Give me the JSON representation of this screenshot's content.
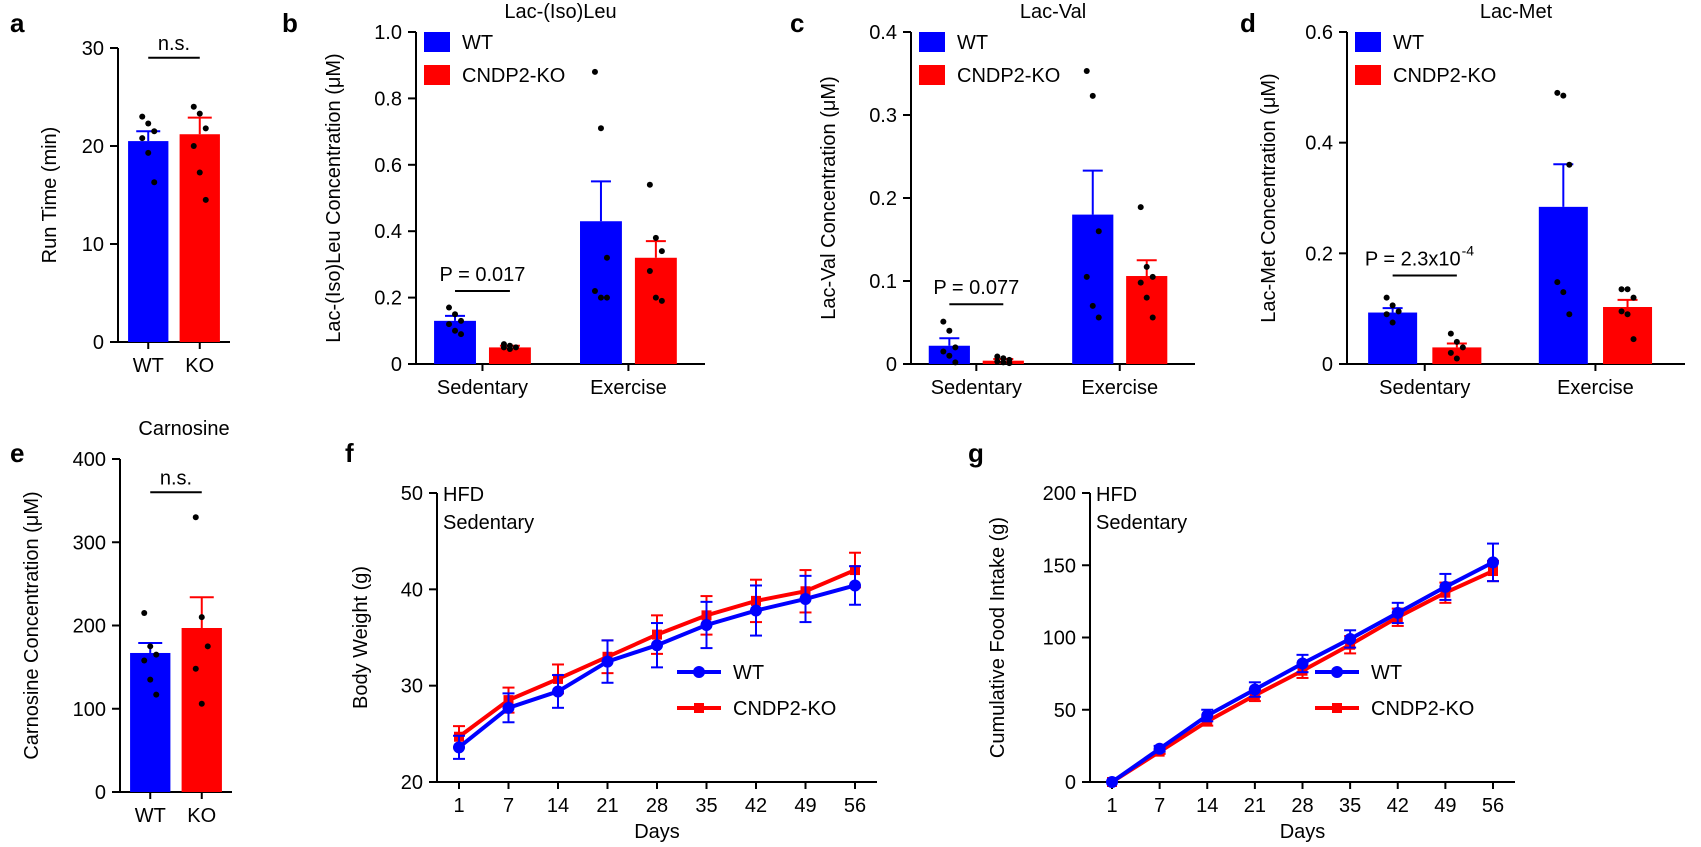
{
  "colors": {
    "wt": "#0000ff",
    "ko": "#ff0000",
    "axis": "#000000",
    "dot": "#000000"
  },
  "chart_data": [
    {
      "id": "a",
      "panel_label": "a",
      "type": "bar",
      "title": "",
      "ylabel": "Run  Time  (min)",
      "xlabel": "",
      "ylim": [
        0,
        30
      ],
      "yticks": [
        0,
        10,
        20,
        30
      ],
      "categories": [
        "WT",
        "KO"
      ],
      "values": [
        20.5,
        21.2
      ],
      "errors": [
        1.0,
        1.7
      ],
      "points": [
        [
          23.0,
          22.3,
          21.5,
          20.8,
          19.3,
          16.3
        ],
        [
          24.0,
          23.3,
          21.8,
          20.0,
          17.3,
          14.5
        ]
      ],
      "annotations": [
        {
          "text": "n.s.",
          "between": [
            0,
            1
          ],
          "y": 29
        }
      ]
    },
    {
      "id": "b",
      "panel_label": "b",
      "type": "grouped-bar",
      "title": "Lac-(Iso)Leu",
      "ylabel": "Lac-(Iso)Leu Concentration (μM)",
      "xlabel": "",
      "ylim": [
        0,
        1.0
      ],
      "yticks": [
        0,
        0.2,
        0.4,
        0.6,
        0.8,
        1.0
      ],
      "ytick_labels": [
        "0",
        "0.2",
        "0.4",
        "0.6",
        "0.8",
        "1.0"
      ],
      "categories": [
        "Sedentary",
        "Exercise"
      ],
      "series": [
        {
          "name": "WT",
          "values": [
            0.13,
            0.43
          ],
          "errors": [
            0.015,
            0.12
          ],
          "points": [
            [
              0.17,
              0.15,
              0.13,
              0.12,
              0.1,
              0.09
            ],
            [
              0.88,
              0.71,
              0.32,
              0.22,
              0.2,
              0.2
            ]
          ]
        },
        {
          "name": "CNDP2-KO",
          "values": [
            0.05,
            0.32
          ],
          "errors": [
            0.005,
            0.05
          ],
          "points": [
            [
              0.06,
              0.055,
              0.05,
              0.05,
              0.045
            ],
            [
              0.54,
              0.38,
              0.34,
              0.28,
              0.2,
              0.19
            ]
          ]
        }
      ],
      "legend": [
        "WT",
        "CNDP2-KO"
      ],
      "annotations": [
        {
          "text": "P = 0.017",
          "between_group": 0,
          "y": 0.22
        }
      ]
    },
    {
      "id": "c",
      "panel_label": "c",
      "type": "grouped-bar",
      "title": "Lac-Val",
      "ylabel": "Lac-Val Concentration (μM)",
      "xlabel": "",
      "ylim": [
        0,
        0.4
      ],
      "yticks": [
        0,
        0.1,
        0.2,
        0.3,
        0.4
      ],
      "ytick_labels": [
        "0",
        "0.1",
        "0.2",
        "0.3",
        "0.4"
      ],
      "categories": [
        "Sedentary",
        "Exercise"
      ],
      "series": [
        {
          "name": "WT",
          "values": [
            0.022,
            0.18
          ],
          "errors": [
            0.009,
            0.053
          ],
          "points": [
            [
              0.051,
              0.04,
              0.02,
              0.015,
              0.01,
              0.002
            ],
            [
              0.353,
              0.323,
              0.16,
              0.105,
              0.07,
              0.056
            ]
          ]
        },
        {
          "name": "CNDP2-KO",
          "values": [
            0.004,
            0.106
          ],
          "errors": [
            0.002,
            0.019
          ],
          "points": [
            [
              0.009,
              0.007,
              0.005,
              0.003,
              0.002,
              0.001
            ],
            [
              0.189,
              0.117,
              0.105,
              0.098,
              0.08,
              0.056
            ]
          ]
        }
      ],
      "legend": [
        "WT",
        "CNDP2-KO"
      ],
      "annotations": [
        {
          "text": "P = 0.077",
          "between_group": 0,
          "y": 0.072
        }
      ]
    },
    {
      "id": "d",
      "panel_label": "d",
      "type": "grouped-bar",
      "title": "Lac-Met",
      "ylabel": "Lac-Met Concentration (μM)",
      "xlabel": "",
      "ylim": [
        0,
        0.6
      ],
      "yticks": [
        0,
        0.2,
        0.4,
        0.6
      ],
      "ytick_labels": [
        "0",
        "0.2",
        "0.4",
        "0.6"
      ],
      "categories": [
        "Sedentary",
        "Exercise"
      ],
      "series": [
        {
          "name": "WT",
          "values": [
            0.093,
            0.284
          ],
          "errors": [
            0.008,
            0.077
          ],
          "points": [
            [
              0.12,
              0.106,
              0.095,
              0.09,
              0.075
            ],
            [
              0.49,
              0.485,
              0.36,
              0.148,
              0.13,
              0.09
            ]
          ]
        },
        {
          "name": "CNDP2-KO",
          "values": [
            0.03,
            0.103
          ],
          "errors": [
            0.007,
            0.013
          ],
          "points": [
            [
              0.055,
              0.04,
              0.03,
              0.02,
              0.01
            ],
            [
              0.135,
              0.135,
              0.12,
              0.095,
              0.09,
              0.045
            ]
          ]
        }
      ],
      "legend": [
        "WT",
        "CNDP2-KO"
      ],
      "annotations": [
        {
          "text": "P = 2.3x10",
          "superscript": "-4",
          "between_group": 0,
          "y": 0.16
        }
      ]
    },
    {
      "id": "e",
      "panel_label": "e",
      "type": "bar",
      "title": "Carnosine",
      "ylabel": "Carnosine Concentration (μM)",
      "xlabel": "",
      "ylim": [
        0,
        400
      ],
      "yticks": [
        0,
        100,
        200,
        300,
        400
      ],
      "ytick_labels": [
        "0",
        "100",
        "200",
        "300",
        "400"
      ],
      "categories": [
        "WT",
        "KO"
      ],
      "values": [
        167,
        197
      ],
      "errors": [
        12,
        37
      ],
      "points": [
        [
          215,
          175,
          165,
          158,
          135,
          117
        ],
        [
          330,
          210,
          175,
          148,
          106
        ]
      ],
      "annotations": [
        {
          "text": "n.s.",
          "between": [
            0,
            1
          ],
          "y": 360
        }
      ]
    },
    {
      "id": "f",
      "panel_label": "f",
      "type": "line",
      "title": "",
      "ylabel": "Body Weight (g)",
      "xlabel": "Days",
      "ylim": [
        20,
        50
      ],
      "yticks": [
        20,
        30,
        40,
        50
      ],
      "ytick_labels": [
        "20",
        "30",
        "40",
        "50"
      ],
      "x": [
        1,
        7,
        14,
        21,
        28,
        35,
        42,
        49,
        56
      ],
      "series": [
        {
          "name": "CNDP2-KO",
          "values": [
            24.7,
            28.5,
            30.7,
            33.0,
            35.3,
            37.3,
            38.8,
            39.8,
            42.0
          ],
          "errors": [
            1.1,
            1.3,
            1.5,
            1.7,
            2.0,
            2.0,
            2.2,
            2.2,
            1.8
          ]
        },
        {
          "name": "WT",
          "values": [
            23.6,
            27.7,
            29.4,
            32.5,
            34.2,
            36.3,
            37.8,
            39.0,
            40.4
          ],
          "errors": [
            1.2,
            1.5,
            1.7,
            2.2,
            2.3,
            2.4,
            2.6,
            2.4,
            2.0
          ]
        }
      ],
      "legend": [
        "WT",
        "CNDP2-KO"
      ],
      "annotations": [
        {
          "lines": [
            "HFD",
            "Sedentary"
          ]
        }
      ]
    },
    {
      "id": "g",
      "panel_label": "g",
      "type": "line",
      "title": "",
      "ylabel": "Cumulative Food Intake (g)",
      "xlabel": "Days",
      "ylim": [
        0,
        200
      ],
      "yticks": [
        0,
        50,
        100,
        150,
        200
      ],
      "ytick_labels": [
        "0",
        "50",
        "100",
        "150",
        "200"
      ],
      "x": [
        1,
        7,
        14,
        21,
        28,
        35,
        42,
        49,
        56
      ],
      "series": [
        {
          "name": "CNDP2-KO",
          "values": [
            0,
            21,
            42,
            60,
            77,
            95,
            114,
            131,
            146
          ],
          "errors": [
            0,
            1.5,
            3,
            4,
            5,
            6,
            6,
            7,
            7
          ]
        },
        {
          "name": "WT",
          "values": [
            0,
            23,
            46,
            64,
            82,
            99,
            117,
            135,
            152
          ],
          "errors": [
            0,
            2,
            4,
            5,
            6,
            6,
            7,
            9,
            13
          ]
        }
      ],
      "legend": [
        "WT",
        "CNDP2-KO"
      ],
      "annotations": [
        {
          "lines": [
            "HFD",
            "Sedentary"
          ]
        }
      ]
    }
  ]
}
